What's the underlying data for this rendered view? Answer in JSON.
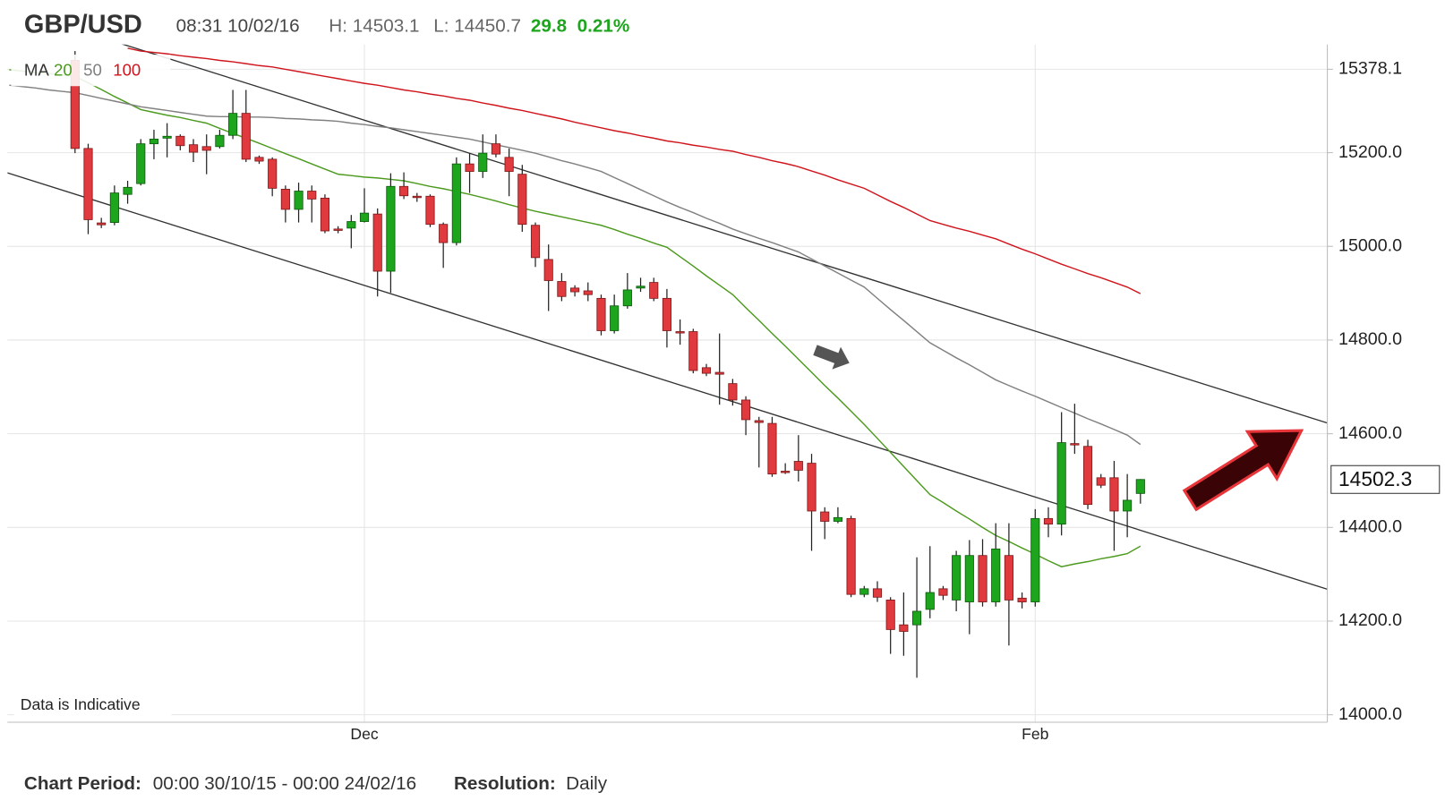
{
  "chart_data": {
    "type": "candlestick",
    "title": "GBP/USD",
    "timestamp": "08:31 10/02/16",
    "high_label": "H: 14503.1",
    "low_label": "L: 14450.7",
    "change": "29.8",
    "change_pct": "0.21%",
    "note": "Data is Indicative",
    "footer": {
      "period_label": "Chart Period:",
      "period": "00:00 30/10/15 - 00:00 24/02/16",
      "resolution_label": "Resolution:",
      "resolution": "Daily"
    },
    "legend_title": "MA",
    "up_color": "#1ea51e",
    "down_color": "#e0393e",
    "ylim": [
      13984,
      15431
    ],
    "yticks": [
      {
        "value": 14000,
        "label": "14000.0"
      },
      {
        "value": 14200,
        "label": "14200.0"
      },
      {
        "value": 14400,
        "label": "14400.0"
      },
      {
        "value": 14600,
        "label": "14600.0"
      },
      {
        "value": 14800,
        "label": "14800.0"
      },
      {
        "value": 15000,
        "label": "15000.0"
      },
      {
        "value": 15200,
        "label": "15200.0"
      },
      15378.1
    ],
    "grid": true,
    "last_price": 14502.3,
    "categories": [
      null,
      null,
      null,
      null,
      null,
      null,
      null,
      null,
      null,
      null,
      null,
      null,
      null,
      null,
      null,
      null,
      null,
      null,
      null,
      null,
      null,
      null,
      null,
      null,
      null,
      null,
      null,
      "Dec",
      null,
      null,
      null,
      null,
      null,
      null,
      null,
      null,
      null,
      null,
      null,
      null,
      null,
      null,
      null,
      null,
      null,
      null,
      null,
      null,
      null,
      null,
      null,
      null,
      null,
      null,
      null,
      null,
      null,
      null,
      null,
      null,
      null,
      null,
      null,
      null,
      null,
      null,
      null,
      null,
      null,
      null,
      null,
      null,
      null,
      null,
      null,
      null,
      null,
      null,
      "Feb",
      null,
      null,
      null,
      null,
      null,
      null,
      null,
      null
    ],
    "open": [
      null,
      null,
      null,
      null,
      null,
      15397,
      15209,
      15050,
      15051,
      15111,
      15134,
      15219,
      15231,
      15235,
      15217,
      15213,
      15213,
      15237,
      15284,
      15190,
      15186,
      15122,
      15079,
      15118,
      15103,
      15037,
      15039,
      15053,
      15069,
      14947,
      15128,
      15107,
      15107,
      15047,
      15008,
      15176,
      15160,
      15219,
      15190,
      15154,
      15045,
      14972,
      14925,
      14911,
      14905,
      14889,
      14820,
      14873,
      14911,
      14923,
      14889,
      14818,
      14818,
      14741,
      14731,
      14707,
      14672,
      14628,
      14622,
      14520,
      14541,
      14537,
      14433,
      14413,
      14419,
      14257,
      14269,
      14245,
      14192,
      14192,
      14225,
      14269,
      14245,
      14241,
      14340,
      14241,
      14340,
      14249,
      14241,
      14419,
      14407,
      14579,
      14573,
      14506,
      14506,
      14435,
      14472.5
    ],
    "high": [
      null,
      null,
      null,
      null,
      null,
      15417,
      15219,
      15061,
      15130,
      15140,
      15229,
      15249,
      15263,
      15239,
      15229,
      15239,
      15249,
      15334,
      15334,
      15194,
      15190,
      15130,
      15136,
      15130,
      15111,
      15043,
      15067,
      15124,
      15081,
      15156,
      15158,
      15114,
      15111,
      15051,
      15190,
      15199,
      15239,
      15239,
      15209,
      15174,
      15051,
      15004,
      14943,
      14917,
      14923,
      14897,
      14897,
      14943,
      14933,
      14933,
      14909,
      14844,
      14824,
      14749,
      14814,
      14717,
      14680,
      14636,
      14636,
      14537,
      14597,
      14557,
      14443,
      14443,
      14425,
      14275,
      14285,
      14251,
      14261,
      14336,
      14360,
      14275,
      14350,
      14373,
      14375,
      14409,
      14409,
      14261,
      14439,
      14443,
      14646,
      14664,
      14587,
      14514,
      14542,
      14514,
      14503.1
    ],
    "low": [
      null,
      null,
      null,
      null,
      null,
      15199,
      15026,
      15039,
      15045,
      15091,
      15130,
      15186,
      15190,
      15205,
      15180,
      15154,
      15209,
      15229,
      15180,
      15176,
      15107,
      15051,
      15051,
      15051,
      15028,
      15028,
      14996,
      15051,
      14893,
      14901,
      15101,
      15095,
      15041,
      14954,
      15002,
      15114,
      15146,
      15190,
      15107,
      15031,
      14956,
      14862,
      14883,
      14893,
      14883,
      14810,
      14814,
      14867,
      14903,
      14883,
      14784,
      14790,
      14729,
      14723,
      14662,
      14660,
      14597,
      14528,
      14508,
      14514,
      14498,
      14350,
      14375,
      14409,
      14251,
      14251,
      14241,
      14130,
      14126,
      14079,
      14206,
      14245,
      14221,
      14172,
      14231,
      14231,
      14148,
      14227,
      14231,
      14379,
      14383,
      14557,
      14439,
      14484,
      14350,
      14379,
      14450.7
    ],
    "close": [
      null,
      null,
      null,
      null,
      null,
      15209,
      15057,
      15046,
      15114,
      15126,
      15219,
      15229,
      15235,
      15215,
      15201,
      15205,
      15237,
      15284,
      15186,
      15182,
      15124,
      15079,
      15118,
      15101,
      15033,
      15035,
      15053,
      15071,
      14947,
      15128,
      15108,
      15105,
      15047,
      15008,
      15176,
      15160,
      15199,
      15197,
      15160,
      15047,
      14976,
      14927,
      14893,
      14903,
      14897,
      14820,
      14873,
      14907,
      14915,
      14889,
      14820,
      14816,
      14735,
      14729,
      14727,
      14672,
      14630,
      14624,
      14514,
      14518,
      14522,
      14435,
      14413,
      14421,
      14257,
      14269,
      14251,
      14182,
      14178,
      14221,
      14261,
      14255,
      14340,
      14340,
      14241,
      14354,
      14245,
      14241,
      14419,
      14407,
      14581,
      14577,
      14449,
      14490,
      14435,
      14458,
      14502.3
    ],
    "moving_averages": [
      {
        "name": "20",
        "color": "#4c9a1e",
        "values": [
          15377,
          15374,
          15371,
          15369,
          15366,
          15363,
          15349,
          15335,
          15320,
          15306,
          15292,
          15286,
          15280,
          15275,
          15269,
          15263,
          15252,
          15241,
          15231,
          15220,
          15209,
          15198,
          15187,
          15176,
          15165,
          15154,
          15151,
          15148,
          15146,
          15143,
          15140,
          15134,
          15128,
          15123,
          15117,
          15111,
          15104,
          15097,
          15089,
          15082,
          15075,
          15069,
          15063,
          15057,
          15051,
          15045,
          15036,
          15026,
          15017,
          15007,
          14998,
          14978,
          14958,
          14937,
          14917,
          14897,
          14869,
          14842,
          14814,
          14787,
          14759,
          14731,
          14703,
          14676,
          14648,
          14620,
          14590,
          14560,
          14530,
          14500,
          14470,
          14453,
          14435,
          14418,
          14400,
          14383,
          14370,
          14356,
          14343,
          14329,
          14316,
          14322,
          14327,
          14333,
          14338,
          14344,
          14360
        ]
      },
      {
        "name": "50",
        "color": "#808080",
        "values": [
          15344,
          15341,
          15338,
          15334,
          15331,
          15328,
          15322,
          15316,
          15310,
          15304,
          15298,
          15294,
          15290,
          15286,
          15282,
          15278,
          15277,
          15277,
          15276,
          15276,
          15275,
          15273,
          15272,
          15270,
          15269,
          15267,
          15263,
          15260,
          15256,
          15253,
          15249,
          15245,
          15241,
          15237,
          15233,
          15229,
          15223,
          15217,
          15211,
          15205,
          15199,
          15191,
          15183,
          15176,
          15168,
          15160,
          15147,
          15134,
          15121,
          15108,
          15095,
          15083,
          15072,
          15060,
          15049,
          15037,
          15027,
          15017,
          15008,
          14998,
          14988,
          14973,
          14958,
          14943,
          14928,
          14913,
          14889,
          14865,
          14842,
          14818,
          14794,
          14778,
          14762,
          14747,
          14731,
          14715,
          14703,
          14691,
          14680,
          14668,
          14656,
          14644,
          14632,
          14621,
          14609,
          14597,
          14577
        ]
      },
      {
        "name": "100",
        "color": "#d0151d",
        "values": [
          null,
          null,
          null,
          null,
          null,
          null,
          null,
          null,
          null,
          15423,
          15417,
          15414,
          15411,
          15407,
          15404,
          15401,
          15397,
          15394,
          15390,
          15386,
          15383,
          15378,
          15373,
          15368,
          15363,
          15358,
          15353,
          15348,
          15344,
          15339,
          15334,
          15330,
          15325,
          15321,
          15316,
          15312,
          15306,
          15301,
          15295,
          15290,
          15284,
          15278,
          15272,
          15265,
          15259,
          15253,
          15247,
          15242,
          15236,
          15231,
          15225,
          15221,
          15216,
          15212,
          15207,
          15203,
          15196,
          15190,
          15183,
          15177,
          15170,
          15161,
          15152,
          15142,
          15133,
          15124,
          15110,
          15096,
          15083,
          15069,
          15055,
          15047,
          15039,
          15032,
          15024,
          15016,
          15005,
          14994,
          14984,
          14973,
          14962,
          14952,
          14942,
          14933,
          14923,
          14913,
          14899
        ]
      }
    ],
    "trendlines": [
      {
        "color": "#333333",
        "values": [
          15509,
          14623
        ]
      },
      {
        "color": "#333333",
        "values": [
          15157,
          14268
        ]
      }
    ]
  }
}
